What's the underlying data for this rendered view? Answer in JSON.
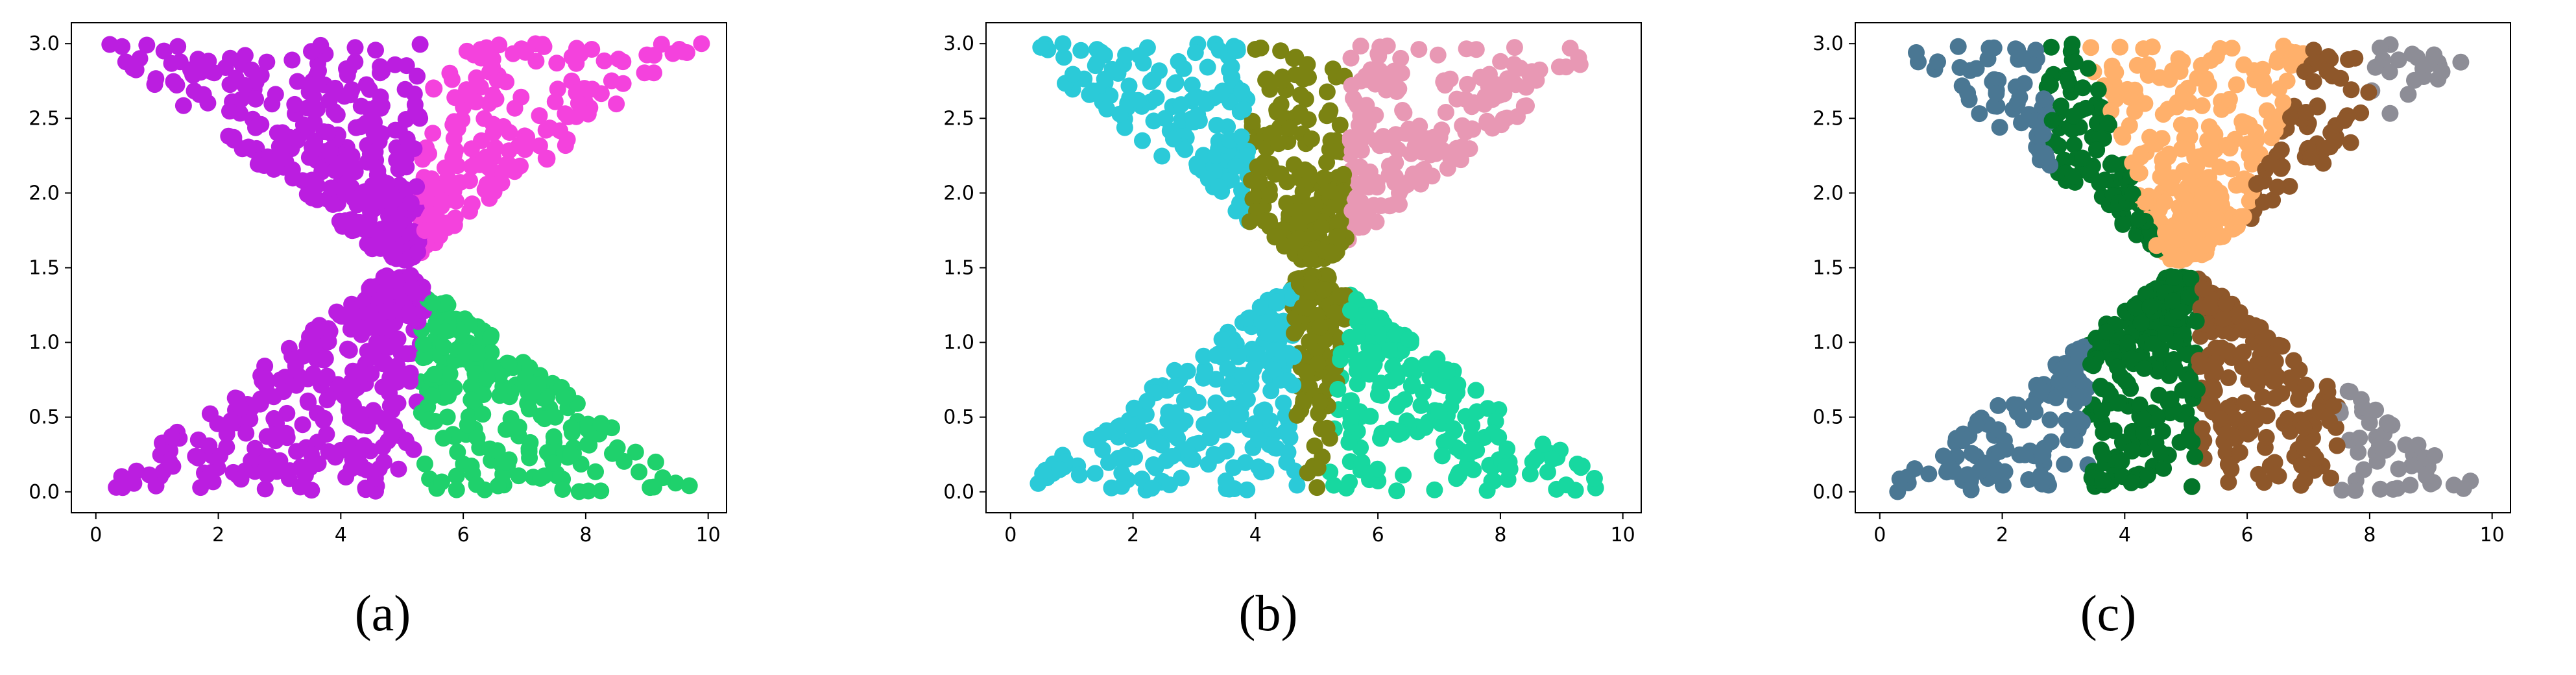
{
  "chart_data": [
    {
      "type": "scatter",
      "panel_label": "(a)",
      "xlim": [
        -0.4,
        10.3
      ],
      "ylim": [
        -0.14,
        3.14
      ],
      "xticks": [
        "0",
        "2",
        "4",
        "6",
        "8",
        "10"
      ],
      "yticks": [
        "0.0",
        "0.5",
        "1.0",
        "1.5",
        "2.0",
        "2.5",
        "3.0"
      ],
      "grid": false,
      "clusters": [
        {
          "color": "#bb1ee0",
          "x_range": [
            0.0,
            5.4
          ],
          "region": "upper-left"
        },
        {
          "color": "#bb1ee0",
          "x_range": [
            0.0,
            5.3
          ],
          "region": "lower-left"
        },
        {
          "color": "#f442dd",
          "x_range": [
            5.3,
            10.0
          ],
          "region": "upper-right"
        },
        {
          "color": "#1fd16c",
          "x_range": [
            5.3,
            10.0
          ],
          "region": "lower-right"
        }
      ]
    },
    {
      "type": "scatter",
      "panel_label": "(b)",
      "xlim": [
        -0.4,
        10.3
      ],
      "ylim": [
        -0.14,
        3.14
      ],
      "xticks": [
        "0",
        "2",
        "4",
        "6",
        "8",
        "10"
      ],
      "yticks": [
        "0.0",
        "0.5",
        "1.0",
        "1.5",
        "2.0",
        "2.5",
        "3.0"
      ],
      "grid": false,
      "clusters": [
        {
          "color": "#2bcad8",
          "x_range": [
            0.0,
            4.4
          ],
          "region": "left"
        },
        {
          "color": "#7b8312",
          "x_range": [
            4.3,
            5.7
          ],
          "region": "center"
        },
        {
          "color": "#e898b4",
          "x_range": [
            5.6,
            10.0
          ],
          "region": "upper-right"
        },
        {
          "color": "#17d8a0",
          "x_range": [
            5.4,
            10.0
          ],
          "region": "lower-right"
        }
      ]
    },
    {
      "type": "scatter",
      "panel_label": "(c)",
      "xlim": [
        -0.4,
        10.3
      ],
      "ylim": [
        -0.14,
        3.14
      ],
      "xticks": [
        "0",
        "2",
        "4",
        "6",
        "8",
        "10"
      ],
      "yticks": [
        "0.0",
        "0.5",
        "1.0",
        "1.5",
        "2.0",
        "2.5",
        "3.0"
      ],
      "grid": false,
      "clusters": [
        {
          "color": "#4a7793",
          "x_range": [
            0.0,
            3.4
          ],
          "region": "far-left"
        },
        {
          "color": "#037529",
          "x_range": [
            2.7,
            5.2
          ],
          "region": "center-left"
        },
        {
          "color": "#ffb06b",
          "x_range": [
            3.2,
            7.0
          ],
          "region": "upper-center"
        },
        {
          "color": "#8e572a",
          "x_range": [
            5.2,
            8.0
          ],
          "region": "center-right"
        },
        {
          "color": "#8d8d96",
          "x_range": [
            7.5,
            10.0
          ],
          "region": "far-right"
        }
      ]
    }
  ]
}
